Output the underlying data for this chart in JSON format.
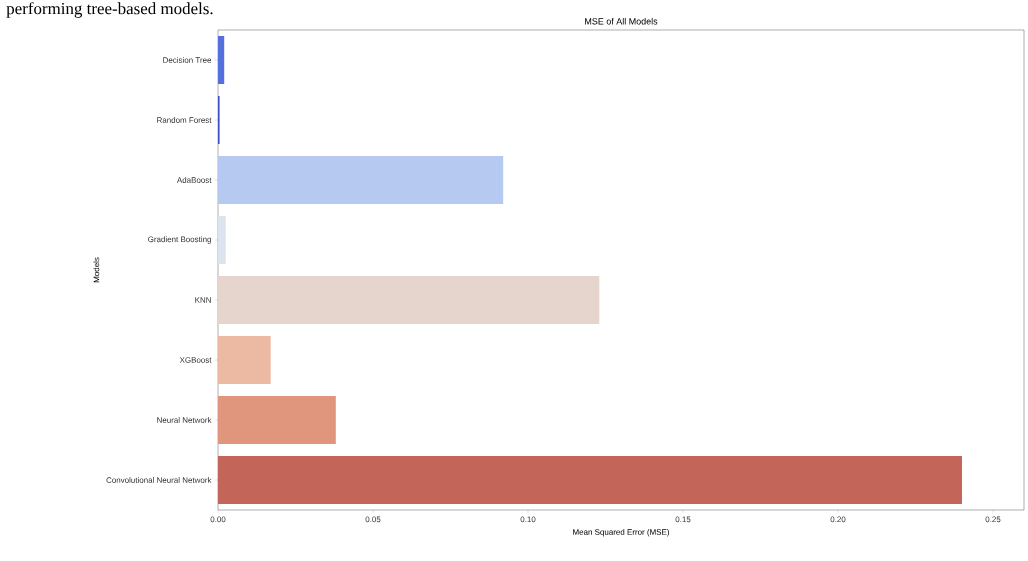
{
  "chart_data": {
    "type": "bar",
    "orientation": "horizontal",
    "title": "MSE of All Models",
    "xlabel": "Mean Squared Error (MSE)",
    "ylabel": "Models",
    "categories": [
      "Decision Tree",
      "Random Forest",
      "AdaBoost",
      "Gradient Boosting",
      "KNN",
      "XGBoost",
      "Neural Network",
      "Convolutional Neural Network"
    ],
    "values": [
      0.002,
      0.0005,
      0.092,
      0.0025,
      0.123,
      0.017,
      0.038,
      0.24
    ],
    "colors": [
      "#5470de",
      "#3b4cc0",
      "#b5c9f1",
      "#dde3ef",
      "#e5d5cd",
      "#ecbaa3",
      "#e0967d",
      "#c4655a"
    ],
    "xlim": [
      0,
      0.26
    ],
    "xticks": [
      {
        "value": 0,
        "label": "0.00"
      },
      {
        "value": 0.05,
        "label": "0.05"
      },
      {
        "value": 0.1,
        "label": "0.10"
      },
      {
        "value": 0.15,
        "label": "0.15"
      },
      {
        "value": 0.2,
        "label": "0.20"
      },
      {
        "value": 0.25,
        "label": "0.25"
      }
    ],
    "annotations": [
      "performing tree-based models."
    ]
  }
}
